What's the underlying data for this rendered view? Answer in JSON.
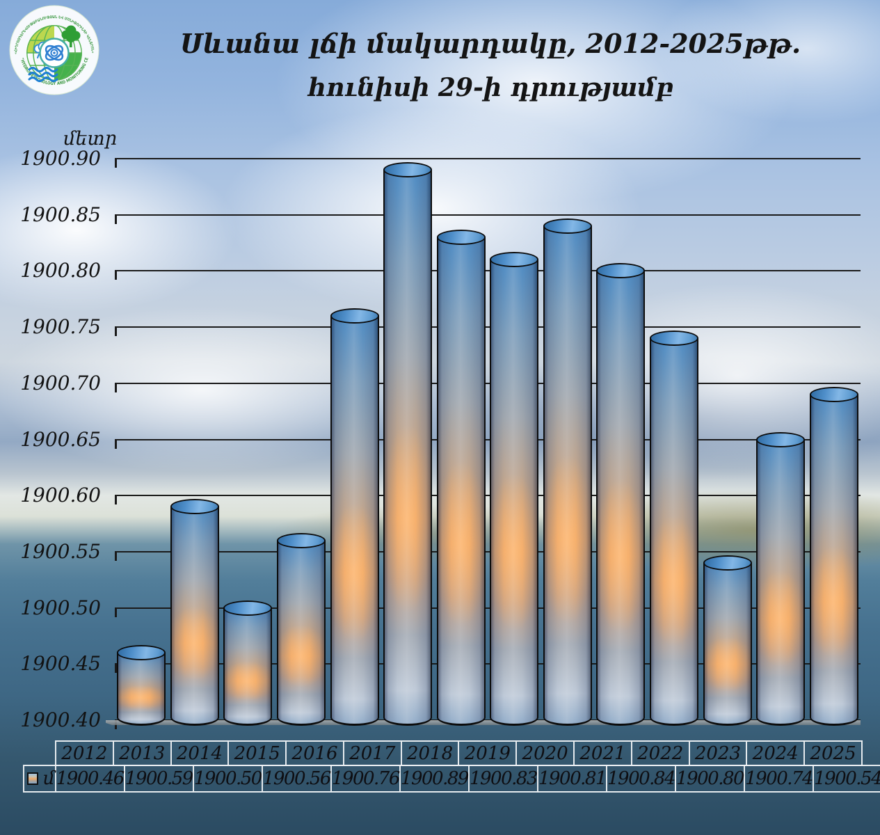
{
  "logo": {
    "top_text": "«ՀԻԴՐՈՕԴԵՐԵՎՈՒԹԱԲԱՆՈՒԹՅԱՆ ԵՎ ՄՈՆԻԹՈՐԻՆԳԻ ԿԵՆՏՐՈՆ»",
    "bottom_text": "\"HYDROMETEOROLOGY AND MONITORING CENTER\""
  },
  "title": {
    "line1": "Սևանա լճի մակարդակը, 2012-2025թթ.",
    "line2": "հունիսի 29-ի դրությամբ"
  },
  "y_axis": {
    "unit_label": "մետր",
    "tick_labels": [
      "1900.90",
      "1900.85",
      "1900.80",
      "1900.75",
      "1900.70",
      "1900.65",
      "1900.60",
      "1900.55",
      "1900.50",
      "1900.45",
      "1900.40"
    ]
  },
  "legend": {
    "series_label": "մ"
  },
  "chart_data": {
    "type": "bar",
    "title": "Սևանա լճի մակարդակը, 2012-2025թթ. հունիսի 29-ի դրությամբ",
    "subtitle": "հունիսի 29-ի դրությամբ",
    "categories": [
      "2012",
      "2013",
      "2014",
      "2015",
      "2016",
      "2017",
      "2018",
      "2019",
      "2020",
      "2021",
      "2022",
      "2023",
      "2024",
      "2025"
    ],
    "values": [
      1900.46,
      1900.59,
      1900.5,
      1900.56,
      1900.76,
      1900.89,
      1900.83,
      1900.81,
      1900.84,
      1900.8,
      1900.74,
      1900.54,
      1900.65,
      1900.69
    ],
    "series_name": "մ",
    "xlabel": "",
    "ylabel": "մետր",
    "ylim": [
      1900.4,
      1900.9
    ],
    "ytick_step": 0.05,
    "grid": true,
    "legend_position": "bottom-left",
    "bar_style": "cylinder-3d"
  },
  "colors": {
    "bar_top": "#4e8ec9",
    "bar_glow": "#e6a873",
    "bar_bottom": "#93adc9",
    "gridline": "#1a1a1a",
    "table_border": "#f0f3f5",
    "logo_green": "#3f9a45"
  }
}
